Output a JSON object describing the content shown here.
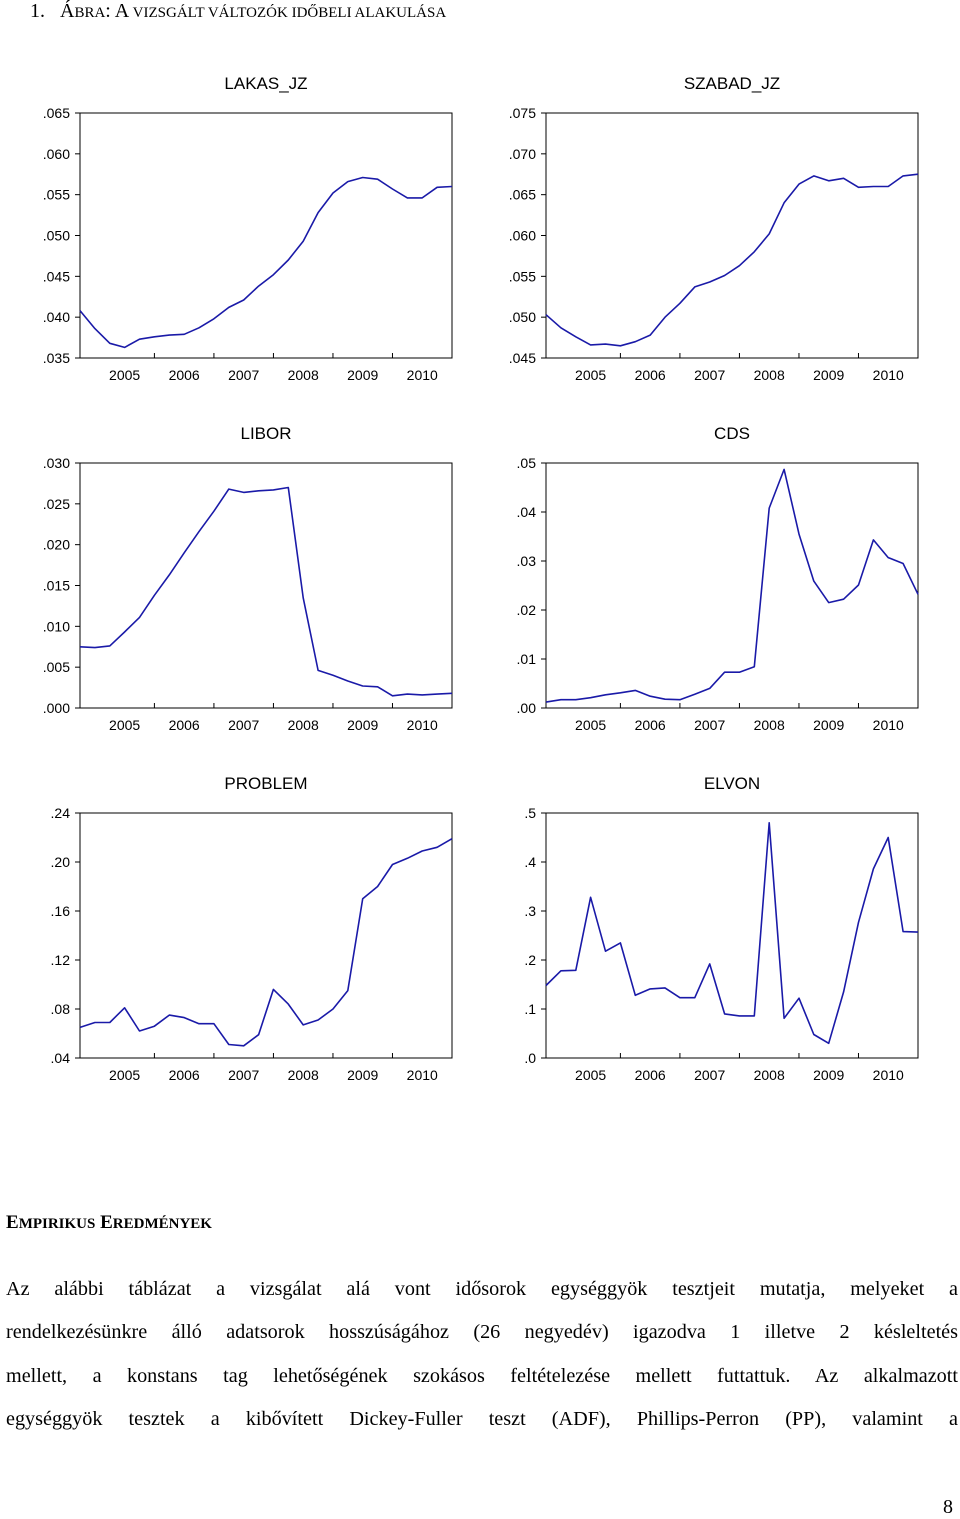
{
  "caption": {
    "number": "1.",
    "first_letter": "Á",
    "rest_1": "BRA",
    "sep": ": ",
    "cap_a": "A",
    "rest_2": " VIZSGÁLT VÁLTOZÓK IDŐBELI ALAKULÁSA"
  },
  "chart_data": [
    {
      "type": "line",
      "title": "LAKAS_JZ",
      "x_ticks": [
        "2005",
        "2006",
        "2007",
        "2008",
        "2009",
        "2010"
      ],
      "y_ticks": [
        ".065",
        ".060",
        ".055",
        ".050",
        ".045",
        ".040",
        ".035"
      ],
      "ylim": [
        0.035,
        0.065
      ],
      "xlim": [
        2004.75,
        2011.0
      ],
      "x": [
        2004.75,
        2005.0,
        2005.25,
        2005.5,
        2005.75,
        2006.0,
        2006.25,
        2006.5,
        2006.75,
        2007.0,
        2007.25,
        2007.5,
        2007.75,
        2008.0,
        2008.25,
        2008.5,
        2008.75,
        2009.0,
        2009.25,
        2009.5,
        2009.75,
        2010.0,
        2010.25,
        2010.5,
        2010.75,
        2011.0
      ],
      "values": [
        0.0408,
        0.0386,
        0.0368,
        0.0363,
        0.0373,
        0.0376,
        0.0378,
        0.0379,
        0.0387,
        0.0398,
        0.0412,
        0.0421,
        0.0438,
        0.0452,
        0.047,
        0.0493,
        0.0528,
        0.0552,
        0.0566,
        0.0571,
        0.0569,
        0.0557,
        0.0546,
        0.0546,
        0.0559,
        0.056
      ]
    },
    {
      "type": "line",
      "title": "SZABAD_JZ",
      "x_ticks": [
        "2005",
        "2006",
        "2007",
        "2008",
        "2009",
        "2010"
      ],
      "y_ticks": [
        ".075",
        ".070",
        ".065",
        ".060",
        ".055",
        ".050",
        ".045"
      ],
      "ylim": [
        0.045,
        0.075
      ],
      "xlim": [
        2004.75,
        2011.0
      ],
      "x": [
        2004.75,
        2005.0,
        2005.25,
        2005.5,
        2005.75,
        2006.0,
        2006.25,
        2006.5,
        2006.75,
        2007.0,
        2007.25,
        2007.5,
        2007.75,
        2008.0,
        2008.25,
        2008.5,
        2008.75,
        2009.0,
        2009.25,
        2009.5,
        2009.75,
        2010.0,
        2010.25,
        2010.5,
        2010.75,
        2011.0
      ],
      "values": [
        0.0503,
        0.0487,
        0.0476,
        0.0466,
        0.0467,
        0.0465,
        0.047,
        0.0478,
        0.05,
        0.0517,
        0.0537,
        0.0543,
        0.0551,
        0.0563,
        0.058,
        0.0602,
        0.064,
        0.0663,
        0.0673,
        0.0667,
        0.067,
        0.0659,
        0.066,
        0.066,
        0.0673,
        0.0675
      ]
    },
    {
      "type": "line",
      "title": "LIBOR",
      "x_ticks": [
        "2005",
        "2006",
        "2007",
        "2008",
        "2009",
        "2010"
      ],
      "y_ticks": [
        ".030",
        ".025",
        ".020",
        ".015",
        ".010",
        ".005",
        ".000"
      ],
      "ylim": [
        0.0,
        0.03
      ],
      "xlim": [
        2004.75,
        2011.0
      ],
      "x": [
        2004.75,
        2005.0,
        2005.25,
        2005.5,
        2005.75,
        2006.0,
        2006.25,
        2006.5,
        2006.75,
        2007.0,
        2007.25,
        2007.5,
        2007.75,
        2008.0,
        2008.25,
        2008.5,
        2008.75,
        2009.0,
        2009.25,
        2009.5,
        2009.75,
        2010.0,
        2010.25,
        2010.5,
        2010.75,
        2011.0
      ],
      "values": [
        0.0075,
        0.0074,
        0.0076,
        0.0093,
        0.0111,
        0.0138,
        0.0163,
        0.019,
        0.0216,
        0.0241,
        0.0268,
        0.0264,
        0.0266,
        0.0267,
        0.027,
        0.0135,
        0.0046,
        0.004,
        0.0033,
        0.0027,
        0.0026,
        0.0015,
        0.0017,
        0.0016,
        0.0017,
        0.0018
      ]
    },
    {
      "type": "line",
      "title": "CDS",
      "x_ticks": [
        "2005",
        "2006",
        "2007",
        "2008",
        "2009",
        "2010"
      ],
      "y_ticks": [
        ".05",
        ".04",
        ".03",
        ".02",
        ".01",
        ".00"
      ],
      "ylim": [
        0.0,
        0.05
      ],
      "xlim": [
        2004.75,
        2011.0
      ],
      "x": [
        2004.75,
        2005.0,
        2005.25,
        2005.5,
        2005.75,
        2006.0,
        2006.25,
        2006.5,
        2006.75,
        2007.0,
        2007.25,
        2007.5,
        2007.75,
        2008.0,
        2008.25,
        2008.5,
        2008.75,
        2009.0,
        2009.25,
        2009.5,
        2009.75,
        2010.0,
        2010.25,
        2010.5,
        2010.75,
        2011.0
      ],
      "values": [
        0.0012,
        0.0017,
        0.0017,
        0.0021,
        0.0027,
        0.0031,
        0.0036,
        0.0024,
        0.0018,
        0.0017,
        0.0028,
        0.004,
        0.0073,
        0.0073,
        0.0084,
        0.0408,
        0.0487,
        0.0355,
        0.0259,
        0.0215,
        0.0222,
        0.0251,
        0.0343,
        0.0307,
        0.0295,
        0.0232
      ]
    },
    {
      "type": "line",
      "title": "PROBLEM",
      "x_ticks": [
        "2005",
        "2006",
        "2007",
        "2008",
        "2009",
        "2010"
      ],
      "y_ticks": [
        ".24",
        ".20",
        ".16",
        ".12",
        ".08",
        ".04"
      ],
      "ylim": [
        0.04,
        0.24
      ],
      "xlim": [
        2004.75,
        2011.0
      ],
      "x": [
        2004.75,
        2005.0,
        2005.25,
        2005.5,
        2005.75,
        2006.0,
        2006.25,
        2006.5,
        2006.75,
        2007.0,
        2007.25,
        2007.5,
        2007.75,
        2008.0,
        2008.25,
        2008.5,
        2008.75,
        2009.0,
        2009.25,
        2009.5,
        2009.75,
        2010.0,
        2010.25,
        2010.5,
        2010.75,
        2011.0
      ],
      "values": [
        0.065,
        0.069,
        0.069,
        0.081,
        0.062,
        0.066,
        0.075,
        0.073,
        0.068,
        0.068,
        0.051,
        0.05,
        0.059,
        0.096,
        0.084,
        0.067,
        0.071,
        0.08,
        0.095,
        0.17,
        0.18,
        0.198,
        0.203,
        0.209,
        0.212,
        0.219
      ]
    },
    {
      "type": "line",
      "title": "ELVON",
      "x_ticks": [
        "2005",
        "2006",
        "2007",
        "2008",
        "2009",
        "2010"
      ],
      "y_ticks": [
        ".5",
        ".4",
        ".3",
        ".2",
        ".1",
        ".0"
      ],
      "ylim": [
        0.0,
        0.5
      ],
      "xlim": [
        2004.75,
        2011.0
      ],
      "x": [
        2004.75,
        2005.0,
        2005.25,
        2005.5,
        2005.75,
        2006.0,
        2006.25,
        2006.5,
        2006.75,
        2007.0,
        2007.25,
        2007.5,
        2007.75,
        2008.0,
        2008.25,
        2008.5,
        2008.75,
        2009.0,
        2009.25,
        2009.5,
        2009.75,
        2010.0,
        2010.25,
        2010.5,
        2010.75,
        2011.0
      ],
      "values": [
        0.148,
        0.178,
        0.179,
        0.328,
        0.218,
        0.235,
        0.128,
        0.141,
        0.143,
        0.123,
        0.123,
        0.192,
        0.09,
        0.086,
        0.086,
        0.48,
        0.081,
        0.122,
        0.048,
        0.03,
        0.135,
        0.277,
        0.386,
        0.45,
        0.258,
        0.257
      ]
    }
  ],
  "section": {
    "first_letter": "E",
    "rest_1": "MPIRIKUS",
    "space": " ",
    "first_letter_2": "E",
    "rest_2": "REDMÉNYEK"
  },
  "body": {
    "lines": [
      "Az alábbi táblázat a vizsgálat alá vont idősorok egységgyök tesztjeit mutatja, melyeket a",
      "rendelkezésünkre álló adatsorok hosszúságához (26 negyedév) igazodva 1 illetve 2 késleltetés",
      "mellett, a konstans tag lehetőségének szokásos feltételezése mellett futtattuk. Az alkalmazott",
      "egységgyök tesztek a kibővített Dickey-Fuller teszt (ADF), Phillips-Perron (PP), valamint a"
    ]
  },
  "page_number": "8",
  "colors": {
    "line": "#1a1aa8",
    "axis": "#000000",
    "text": "#000000"
  }
}
